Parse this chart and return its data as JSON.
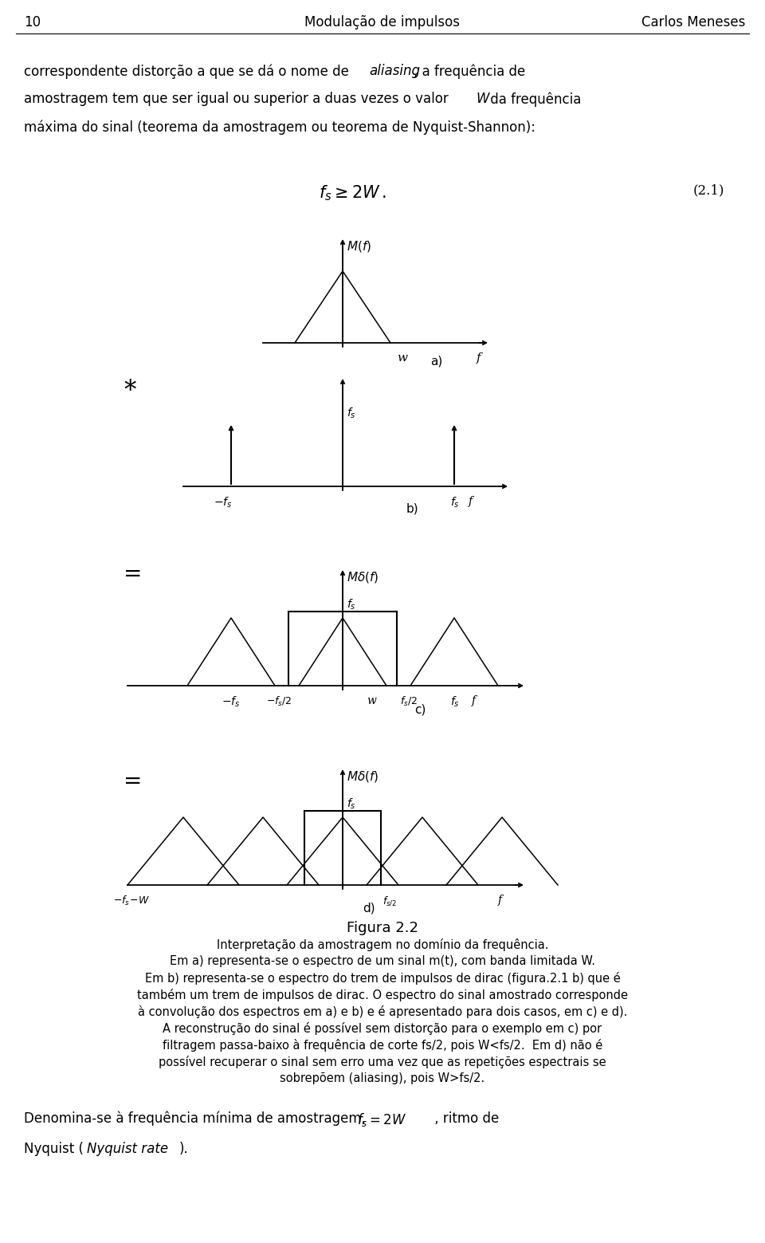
{
  "page_num": "10",
  "title_center": "Modulação de impulsos",
  "title_right": "Carlos Meneses",
  "bg": "#ffffff",
  "line1_pre": "correspondente distorção a que se dá o nome de ",
  "line1_italic": "aliasing",
  "line1_post": ", a frequência de",
  "line2_pre": "amostragem tem que ser igual ou superior a duas vezes o valor ",
  "line2_italic": "W",
  "line2_post": " da frequência",
  "line3": "máxima do sinal (teorema da amostragem ou teorema de Nyquist-Shannon):",
  "eq_number": "(2.1)",
  "fig_label": "Figura 2.2",
  "cap_lines": [
    "Interpretação da amostragem no domínio da frequência.",
    "Em a) representa-se o espectro de um sinal m(t), com banda limitada W.",
    "Em b) representa-se o espectro do trem de impulsos de dirac (figura.2.1 b) que é",
    "também um trem de impulsos de dirac. O espectro do sinal amostrado corresponde",
    "à convolução dos espectros em a) e b) e é apresentado para dois casos, em c) e d).",
    "A reconstrução do sinal é possível sem distorção para o exemplo em c) por",
    "filtragem passa-baixo à frequência de corte fs/2, pois W<fs/2.  Em d) não é",
    "possível recuperar o sinal sem erro uma vez que as repetições espectrais se",
    "sobrepõem (aliasing), pois W>fs/2."
  ],
  "final_line1_pre": "Denomina-se à frequência mínima de amostragem,   ",
  "final_line1_math": "$f_s = 2W$",
  "final_line1_post": " , ritmo de",
  "final_line2_pre": "Nyquist (",
  "final_line2_italic": "Nyquist rate",
  "final_line2_post": ")."
}
